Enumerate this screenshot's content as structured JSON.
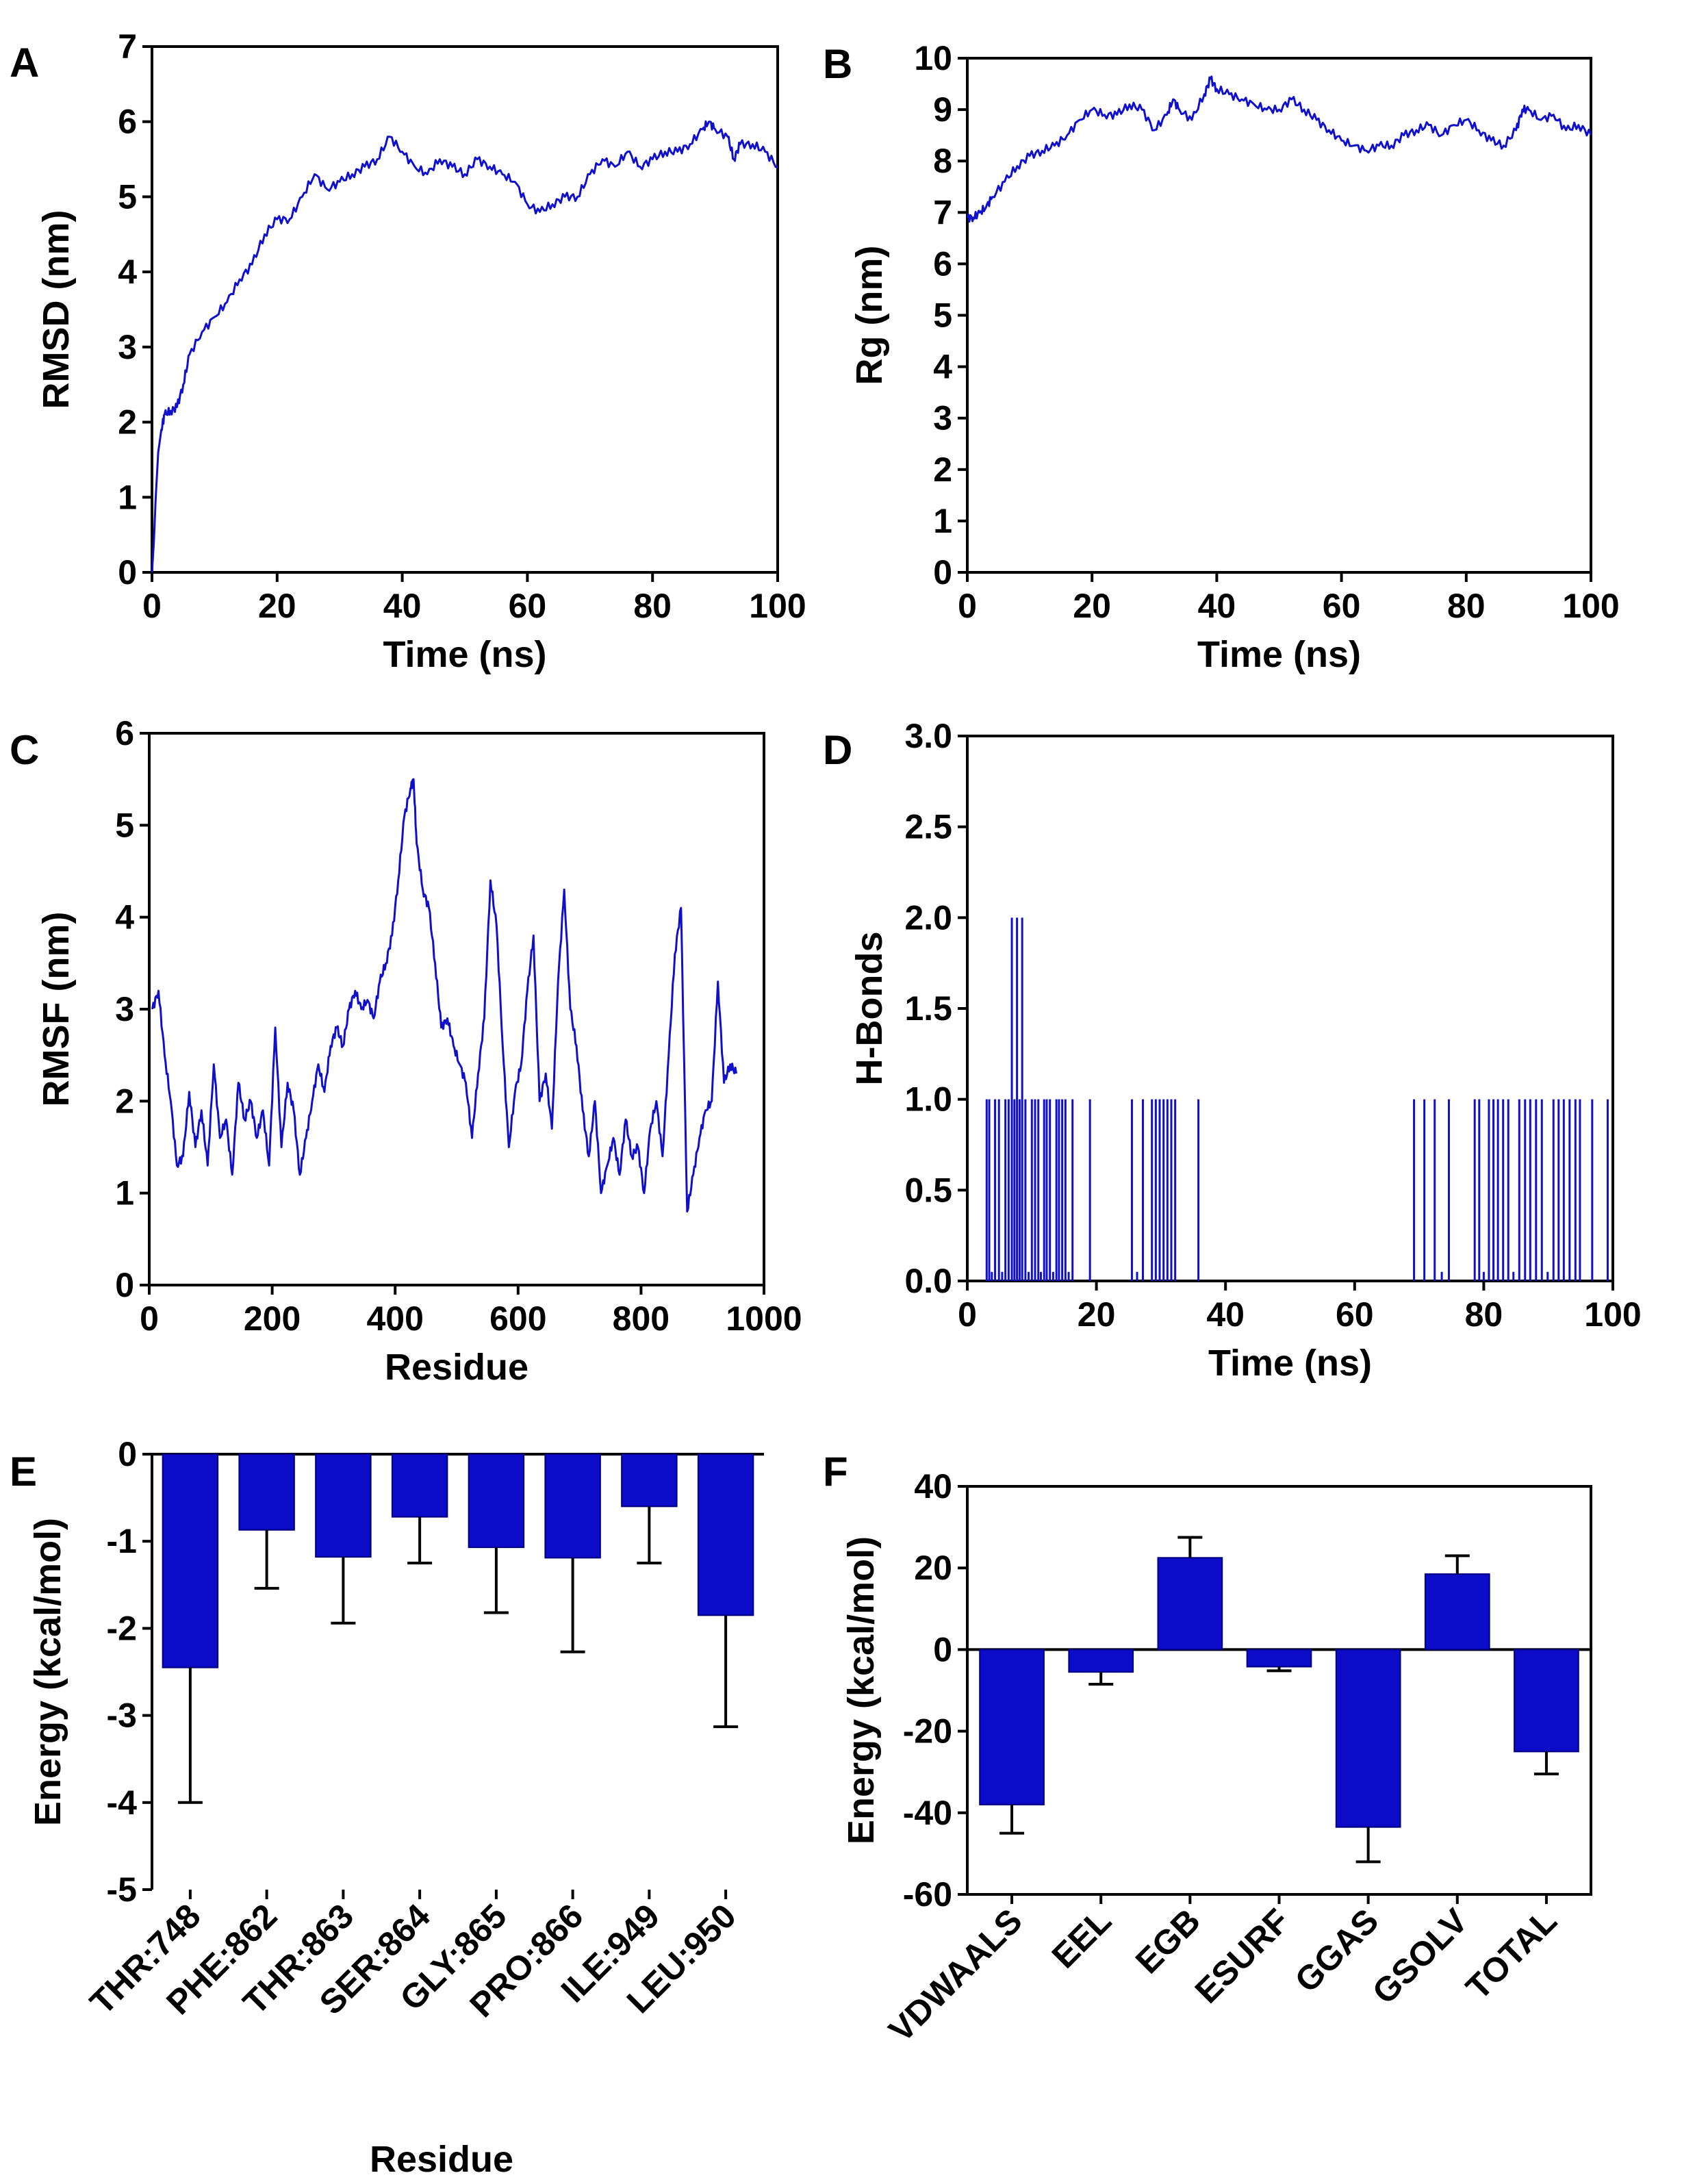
{
  "figure": {
    "accent_color": "#1010cc",
    "bar_color": "#0b0bc8"
  },
  "chart_data": [
    {
      "id": "A",
      "panel": "A",
      "type": "line",
      "xlabel": "Time (ns)",
      "ylabel": "RMSD (nm)",
      "xlim": [
        0,
        100
      ],
      "ylim": [
        0,
        7
      ],
      "xticks": [
        0,
        20,
        40,
        60,
        80,
        100
      ],
      "yticks": [
        0,
        1,
        2,
        3,
        4,
        5,
        6,
        7
      ],
      "series": [
        {
          "name": "RMSD",
          "x": [
            0,
            0.3,
            0.6,
            1,
            1.5,
            2,
            3,
            4,
            5,
            6,
            8,
            10,
            12,
            14,
            16,
            18,
            20,
            22,
            24,
            26,
            28,
            30,
            32,
            34,
            36,
            38,
            40,
            42,
            44,
            46,
            48,
            50,
            52,
            54,
            56,
            58,
            60,
            62,
            64,
            66,
            68,
            70,
            72,
            74,
            76,
            78,
            80,
            82,
            84,
            86,
            88,
            89,
            90,
            92,
            93,
            94,
            96,
            98,
            100
          ],
          "y": [
            0,
            0.4,
            1.0,
            1.6,
            1.9,
            2.1,
            2.15,
            2.2,
            2.5,
            2.9,
            3.2,
            3.4,
            3.6,
            3.9,
            4.1,
            4.5,
            4.7,
            4.7,
            5.0,
            5.3,
            5.1,
            5.2,
            5.3,
            5.4,
            5.5,
            5.8,
            5.6,
            5.4,
            5.3,
            5.5,
            5.4,
            5.3,
            5.5,
            5.4,
            5.3,
            5.2,
            4.9,
            4.8,
            4.9,
            5.0,
            5.0,
            5.3,
            5.5,
            5.4,
            5.6,
            5.4,
            5.5,
            5.6,
            5.6,
            5.7,
            5.9,
            6.0,
            5.9,
            5.8,
            5.5,
            5.7,
            5.7,
            5.6,
            5.4
          ]
        }
      ]
    },
    {
      "id": "B",
      "panel": "B",
      "type": "line",
      "xlabel": "Time (ns)",
      "ylabel": "Rg (nm)",
      "xlim": [
        0,
        100
      ],
      "ylim": [
        0,
        10
      ],
      "xticks": [
        0,
        20,
        40,
        60,
        80,
        100
      ],
      "yticks": [
        0,
        1,
        2,
        3,
        4,
        5,
        6,
        7,
        8,
        9,
        10
      ],
      "series": [
        {
          "name": "Rg",
          "x": [
            0,
            1,
            2,
            3,
            4,
            6,
            8,
            10,
            12,
            14,
            16,
            18,
            20,
            22,
            24,
            26,
            28,
            30,
            32,
            33,
            34,
            36,
            38,
            39,
            40,
            42,
            44,
            46,
            48,
            50,
            52,
            54,
            56,
            58,
            60,
            62,
            64,
            66,
            68,
            70,
            72,
            74,
            76,
            78,
            80,
            82,
            84,
            86,
            88,
            89,
            90,
            92,
            94,
            96,
            98,
            100
          ],
          "y": [
            6.9,
            6.9,
            7.0,
            7.1,
            7.3,
            7.6,
            7.9,
            8.1,
            8.2,
            8.3,
            8.5,
            8.8,
            9.0,
            8.9,
            8.9,
            9.1,
            9.0,
            8.6,
            8.9,
            9.2,
            9.0,
            8.8,
            9.3,
            9.6,
            9.4,
            9.3,
            9.2,
            9.1,
            9.0,
            9.0,
            9.2,
            9.0,
            8.8,
            8.6,
            8.4,
            8.3,
            8.2,
            8.3,
            8.3,
            8.5,
            8.6,
            8.7,
            8.5,
            8.7,
            8.8,
            8.6,
            8.4,
            8.3,
            8.6,
            9.0,
            9.0,
            8.8,
            8.9,
            8.6,
            8.7,
            8.5
          ]
        }
      ]
    },
    {
      "id": "C",
      "panel": "C",
      "type": "line",
      "xlabel": "Residue",
      "ylabel": "RMSF  (nm)",
      "xlim": [
        0,
        1000
      ],
      "ylim": [
        0,
        6
      ],
      "xticks": [
        0,
        200,
        400,
        600,
        800,
        1000
      ],
      "yticks": [
        0,
        1,
        2,
        3,
        4,
        5,
        6
      ],
      "series": [
        {
          "name": "RMSF",
          "x": [
            5,
            15,
            25,
            35,
            45,
            55,
            65,
            75,
            85,
            95,
            105,
            115,
            125,
            135,
            145,
            155,
            165,
            175,
            185,
            195,
            205,
            215,
            225,
            235,
            245,
            255,
            265,
            275,
            285,
            295,
            305,
            315,
            325,
            335,
            345,
            355,
            365,
            375,
            385,
            395,
            405,
            415,
            425,
            430,
            435,
            445,
            455,
            465,
            475,
            485,
            495,
            505,
            515,
            525,
            535,
            545,
            555,
            565,
            575,
            585,
            595,
            605,
            615,
            625,
            635,
            645,
            655,
            665,
            675,
            685,
            695,
            705,
            715,
            725,
            735,
            745,
            755,
            765,
            775,
            785,
            795,
            805,
            815,
            825,
            835,
            845,
            855,
            865,
            875,
            885,
            895,
            905,
            915,
            925,
            935,
            945,
            955
          ],
          "y": [
            3.0,
            3.2,
            2.5,
            2.0,
            1.3,
            1.4,
            2.1,
            1.5,
            1.9,
            1.3,
            2.4,
            1.6,
            1.8,
            1.2,
            2.2,
            1.8,
            2.0,
            1.6,
            1.9,
            1.3,
            2.8,
            1.5,
            2.2,
            1.9,
            1.2,
            1.6,
            2.0,
            2.4,
            2.1,
            2.6,
            2.8,
            2.6,
            3.0,
            3.2,
            3.0,
            3.1,
            2.9,
            3.3,
            3.5,
            3.8,
            4.4,
            5.1,
            5.4,
            5.5,
            4.8,
            4.3,
            4.1,
            3.5,
            2.8,
            2.9,
            2.6,
            2.4,
            2.2,
            1.6,
            2.3,
            2.9,
            4.4,
            3.9,
            2.6,
            1.5,
            2.1,
            2.4,
            3.2,
            3.8,
            2.0,
            2.3,
            1.7,
            3.3,
            4.3,
            3.0,
            2.6,
            1.9,
            1.4,
            2.0,
            1.0,
            1.3,
            1.6,
            1.2,
            1.8,
            1.4,
            1.5,
            1.0,
            1.7,
            2.0,
            1.4,
            2.5,
            3.6,
            4.1,
            0.8,
            1.2,
            1.6,
            1.9,
            2.0,
            3.3,
            2.2,
            2.4,
            2.3
          ]
        }
      ]
    },
    {
      "id": "D",
      "panel": "D",
      "type": "bar",
      "xlabel": "Time (ns)",
      "ylabel": "H-Bonds",
      "xlim": [
        0,
        100
      ],
      "ylim": [
        0.0,
        3.0
      ],
      "xticks": [
        0,
        20,
        40,
        60,
        80,
        100
      ],
      "yticks": [
        "0.0",
        "0.5",
        "1.0",
        "1.5",
        "2.0",
        "2.5",
        "3.0"
      ],
      "series": [
        {
          "name": "H-Bonds",
          "x": [
            3.0,
            3.4,
            3.8,
            4.3,
            4.9,
            5.4,
            5.9,
            6.4,
            6.9,
            7.3,
            7.7,
            8.1,
            8.5,
            9.0,
            9.5,
            10.0,
            10.5,
            11.0,
            11.4,
            11.9,
            12.3,
            12.8,
            13.3,
            13.8,
            14.2,
            14.7,
            15.2,
            15.7,
            16.3,
            19.0,
            25.5,
            26.3,
            27.2,
            28.6,
            29.2,
            29.8,
            30.4,
            31.0,
            31.6,
            32.2,
            35.8,
            69.2,
            70.8,
            72.4,
            73.5,
            74.6,
            78.6,
            79.3,
            80.0,
            80.8,
            81.5,
            82.2,
            83.0,
            83.8,
            84.6,
            85.5,
            86.4,
            87.2,
            88.1,
            89.0,
            89.9,
            90.8,
            91.6,
            92.4,
            93.3,
            94.2,
            94.9,
            96.8,
            99.2
          ],
          "y": [
            1,
            1,
            0,
            1,
            1,
            0,
            1,
            1,
            2,
            1,
            2,
            1,
            2,
            1,
            0,
            1,
            1,
            1,
            0,
            1,
            1,
            1,
            0,
            1,
            1,
            1,
            1,
            0,
            1,
            1,
            1,
            0,
            1,
            1,
            1,
            1,
            1,
            1,
            1,
            1,
            1,
            1,
            1,
            1,
            0,
            1,
            1,
            1,
            0,
            1,
            1,
            1,
            1,
            1,
            0,
            1,
            1,
            1,
            1,
            1,
            0,
            1,
            1,
            1,
            1,
            1,
            1,
            1,
            1
          ]
        }
      ]
    },
    {
      "id": "E",
      "panel": "E",
      "type": "bar",
      "xlabel": "Residue",
      "ylabel": "Energy (kcal/mol)",
      "ylim": [
        -5,
        0
      ],
      "yticks": [
        0,
        -1,
        -2,
        -3,
        -4,
        -5
      ],
      "categories": [
        "THR:748",
        "PHE:862",
        "THR:863",
        "SER:864",
        "GLY:865",
        "PRO:866",
        "ILE:949",
        "LEU:950"
      ],
      "values": [
        -2.45,
        -0.87,
        -1.18,
        -0.72,
        -1.07,
        -1.19,
        -0.6,
        -1.85
      ],
      "errors": [
        1.55,
        0.67,
        0.76,
        0.53,
        0.75,
        1.08,
        0.65,
        1.28
      ]
    },
    {
      "id": "F",
      "panel": "F",
      "type": "bar",
      "xlabel": "",
      "ylabel": "Energy (kcal/mol)",
      "ylim": [
        -60,
        40
      ],
      "yticks": [
        40,
        20,
        0,
        -20,
        -40,
        -60
      ],
      "categories": [
        "VDWAALS",
        "EEL",
        "EGB",
        "ESURF",
        "GGAS",
        "GSOLV",
        "TOTAL"
      ],
      "values": [
        -38,
        -5.5,
        22.5,
        -4.2,
        -43.5,
        18.5,
        -25
      ],
      "errors": [
        7,
        3,
        5,
        1,
        8.5,
        4.5,
        5.5
      ]
    }
  ]
}
